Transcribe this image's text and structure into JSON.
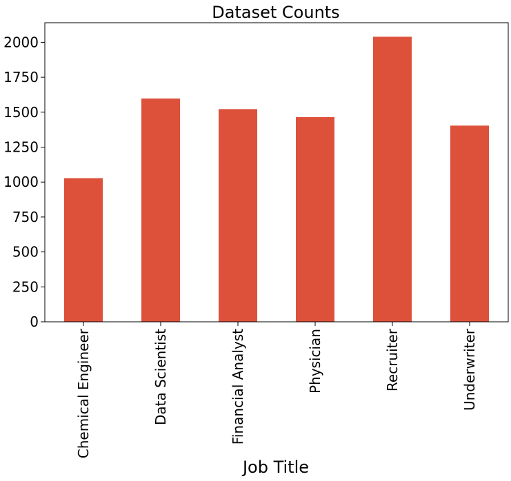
{
  "chart_data": {
    "type": "bar",
    "title": "Dataset Counts",
    "xlabel": "Job Title",
    "ylabel": "",
    "categories": [
      "Chemical Engineer",
      "Data Scientist",
      "Financial Analyst",
      "Physician",
      "Recruiter",
      "Underwriter"
    ],
    "values": [
      1028,
      1598,
      1522,
      1465,
      2040,
      1404
    ],
    "ylim": [
      0,
      2140
    ],
    "yticks": [
      0,
      250,
      500,
      750,
      1000,
      1250,
      1500,
      1750,
      2000
    ],
    "bar_color": "#dd513b",
    "grid": false,
    "legend": "none"
  }
}
